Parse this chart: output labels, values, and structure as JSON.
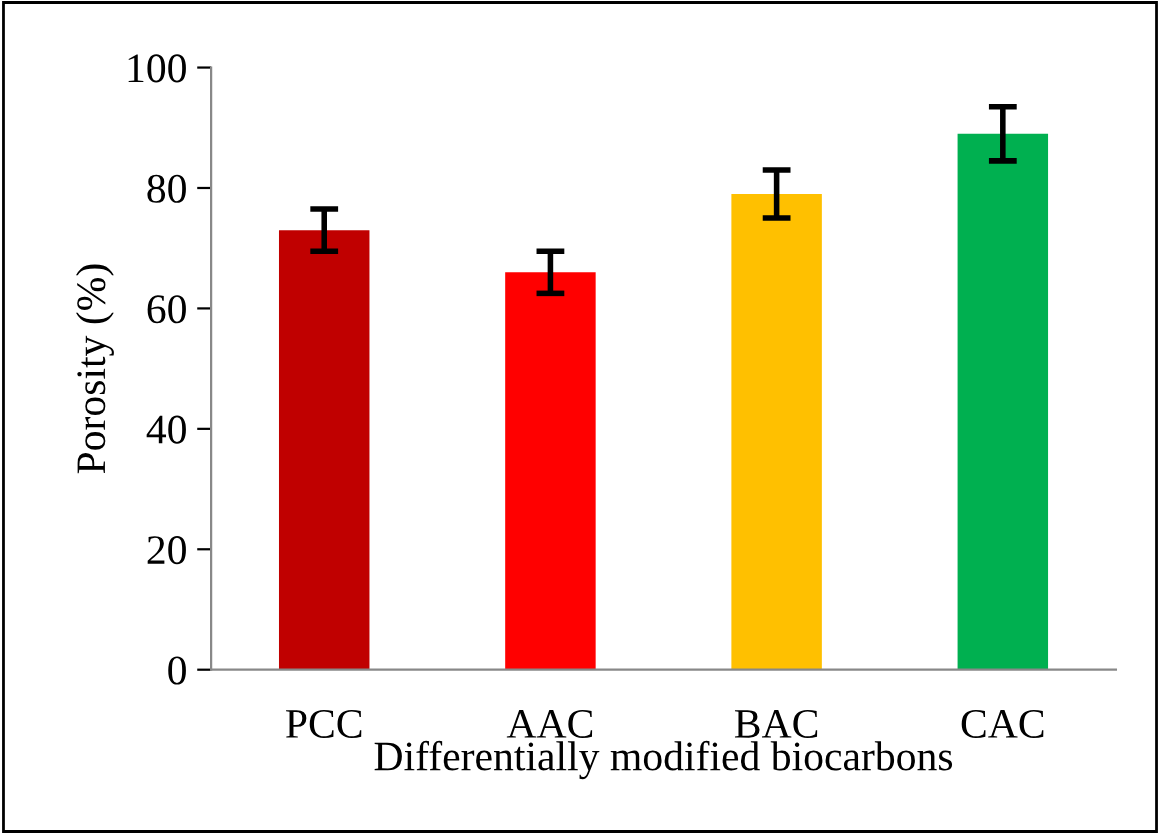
{
  "chart_data": {
    "type": "bar",
    "xlabel": "Differentially modified biocarbons",
    "ylabel": "Porosity (%)",
    "categories": [
      "PCC",
      "AAC",
      "BAC",
      "CAC"
    ],
    "values": [
      73,
      66,
      79,
      89
    ],
    "colors": [
      "#c00000",
      "#ff0000",
      "#ffc000",
      "#00b050"
    ],
    "errors": [
      3.5,
      3.5,
      4,
      4.5
    ],
    "ylim": [
      0,
      100
    ],
    "yticks": [
      0,
      20,
      40,
      60,
      80,
      100
    ],
    "grid": false
  }
}
